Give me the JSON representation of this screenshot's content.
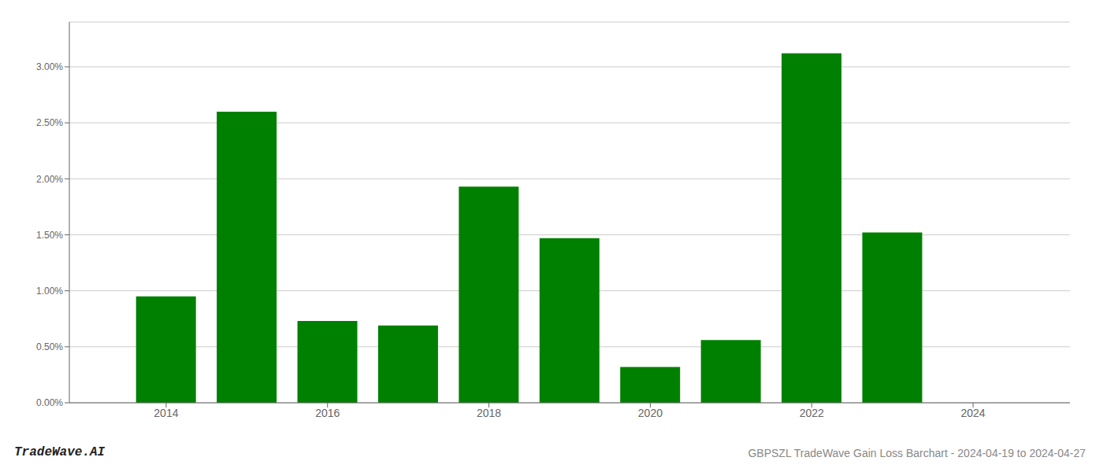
{
  "chart_data": {
    "type": "bar",
    "title": "GBPSZL TradeWave Gain Loss Barchart - 2024-04-19 to 2024-04-27",
    "annotations": [
      "TradeWave.AI"
    ],
    "x": [
      2014,
      2015,
      2016,
      2017,
      2018,
      2019,
      2020,
      2021,
      2022,
      2023
    ],
    "values": [
      0.0095,
      0.026,
      0.0073,
      0.0069,
      0.0193,
      0.0147,
      0.0032,
      0.0056,
      0.0312,
      0.0152
    ],
    "color": "#008000",
    "xlim": [
      2012.8,
      2025.2
    ],
    "xticks": [
      2014,
      2016,
      2018,
      2020,
      2022,
      2024
    ],
    "ylim": [
      0,
      0.034
    ],
    "yticks": [
      {
        "value": 0.0,
        "label": "0.00%"
      },
      {
        "value": 0.005,
        "label": "0.50%"
      },
      {
        "value": 0.01,
        "label": "1.00%"
      },
      {
        "value": 0.015,
        "label": "1.50%"
      },
      {
        "value": 0.02,
        "label": "2.00%"
      },
      {
        "value": 0.025,
        "label": "2.50%"
      },
      {
        "value": 0.03,
        "label": "3.00%"
      }
    ],
    "grid": true
  }
}
